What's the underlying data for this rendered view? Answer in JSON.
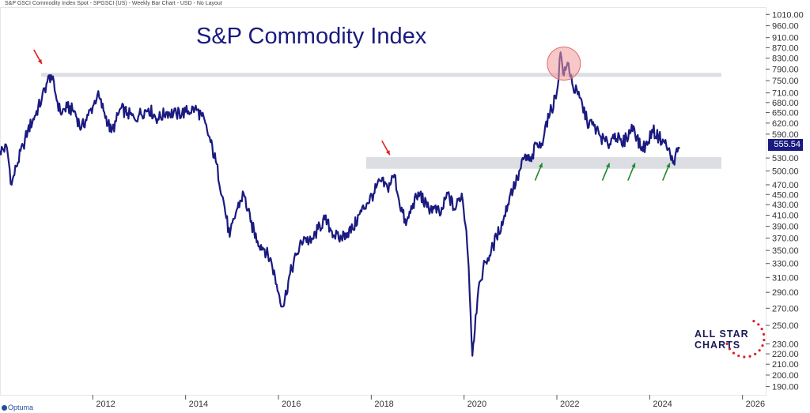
{
  "header": {
    "subtitle": "S&P GSCI Commodity Index Spot - SPGSCI (US) - Weekly Bar Chart - USD - No Layout"
  },
  "logo": {
    "line1": "ALL STAR",
    "line2": "CHARTS"
  },
  "footer": {
    "brand": "Optuma"
  },
  "colors": {
    "price_line": "#1a1a80",
    "axis_text": "#333333",
    "resistance_band": "#dcdee3",
    "marker_circle": "#f29a9a",
    "arrow_red": "#e02020",
    "arrow_green": "#1e8a2a"
  },
  "chart_data": {
    "type": "line",
    "title": "S&P Commodity  Index",
    "x_tick_labels": [
      "2012",
      "2014",
      "2016",
      "2018",
      "2020",
      "2022",
      "2024",
      "2026"
    ],
    "y_tick_labels": [
      "1010.00",
      "960.00",
      "910.00",
      "870.00",
      "830.00",
      "790.00",
      "750.00",
      "710.00",
      "680.00",
      "650.00",
      "620.00",
      "590.00",
      "530.00",
      "500.00",
      "470.00",
      "450.00",
      "430.00",
      "410.00",
      "390.00",
      "370.00",
      "350.00",
      "330.00",
      "310.00",
      "290.00",
      "270.00",
      "250.00",
      "230.00",
      "220.00",
      "210.00",
      "200.00",
      "190.00"
    ],
    "y_scale": "log",
    "ylim": [
      183,
      1040
    ],
    "xlim": [
      2010.0,
      2026.5
    ],
    "last_value": "555.54",
    "series": [
      {
        "x": [
          2010.0,
          2010.15,
          2010.25,
          2010.35,
          2010.5,
          2010.6,
          2010.75,
          2010.9,
          2011.0,
          2011.1,
          2011.2,
          2011.3,
          2011.45,
          2011.6,
          2011.75,
          2011.9,
          2012.0,
          2012.1,
          2012.25,
          2012.4,
          2012.5,
          2012.6,
          2012.75,
          2012.9,
          2013.0,
          2013.2,
          2013.4,
          2013.6,
          2013.8,
          2014.0,
          2014.2,
          2014.35,
          2014.5,
          2014.65,
          2014.8,
          2014.95,
          2015.1,
          2015.25,
          2015.4,
          2015.55,
          2015.7,
          2015.85,
          2016.0,
          2016.1,
          2016.25,
          2016.4,
          2016.55,
          2016.7,
          2016.85,
          2017.0,
          2017.15,
          2017.3,
          2017.45,
          2017.6,
          2017.75,
          2017.9,
          2018.05,
          2018.2,
          2018.35,
          2018.5,
          2018.6,
          2018.75,
          2018.9,
          2019.05,
          2019.2,
          2019.35,
          2019.5,
          2019.65,
          2019.8,
          2019.95,
          2020.05,
          2020.1,
          2020.18,
          2020.25,
          2020.35,
          2020.45,
          2020.55,
          2020.7,
          2020.85,
          2021.0,
          2021.15,
          2021.3,
          2021.45,
          2021.55,
          2021.65,
          2021.75,
          2021.85,
          2022.0,
          2022.08,
          2022.15,
          2022.25,
          2022.35,
          2022.45,
          2022.55,
          2022.65,
          2022.8,
          2022.95,
          2023.1,
          2023.25,
          2023.4,
          2023.5,
          2023.65,
          2023.8,
          2023.95,
          2024.05,
          2024.2,
          2024.3,
          2024.4,
          2024.5,
          2024.55,
          2024.6,
          2024.65
        ],
        "y": [
          548,
          555,
          470,
          510,
          560,
          600,
          640,
          690,
          740,
          770,
          705,
          650,
          665,
          655,
          605,
          642,
          668,
          705,
          650,
          595,
          625,
          662,
          648,
          632,
          645,
          662,
          632,
          652,
          645,
          652,
          662,
          640,
          585,
          522,
          445,
          372,
          420,
          452,
          398,
          365,
          352,
          332,
          290,
          272,
          315,
          345,
          372,
          362,
          385,
          402,
          382,
          368,
          378,
          385,
          412,
          432,
          452,
          478,
          463,
          492,
          438,
          392,
          432,
          452,
          425,
          422,
          412,
          452,
          420,
          452,
          382,
          325,
          218,
          262,
          305,
          332,
          342,
          372,
          402,
          452,
          482,
          532,
          522,
          565,
          555,
          612,
          645,
          712,
          852,
          768,
          812,
          728,
          705,
          672,
          625,
          612,
          582,
          562,
          592,
          562,
          582,
          612,
          555,
          562,
          602,
          582,
          572,
          552,
          518,
          535,
          545,
          555
        ]
      }
    ],
    "annotations": {
      "resistance_level": 770,
      "support_zone": [
        505,
        532
      ],
      "peak_circle": {
        "x": 2022.15,
        "y": 810
      },
      "red_arrows": [
        {
          "x": 2010.9,
          "y": 775
        },
        {
          "x": 2018.4,
          "y": 515
        }
      ],
      "green_arrows": [
        {
          "x": 2021.65,
          "y": 500
        },
        {
          "x": 2023.1,
          "y": 500
        },
        {
          "x": 2023.65,
          "y": 500
        },
        {
          "x": 2024.4,
          "y": 500
        }
      ]
    }
  }
}
